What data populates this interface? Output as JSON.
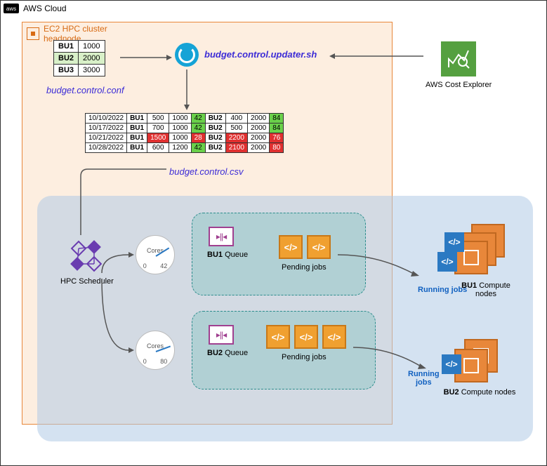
{
  "header": {
    "aws_label": "aws",
    "title": "AWS Cloud"
  },
  "ec2": {
    "title_line1": "EC2 HPC cluster",
    "title_line2": "headnode"
  },
  "conf": {
    "rows": [
      {
        "bu": "BU1",
        "val": "1000",
        "hl": false
      },
      {
        "bu": "BU2",
        "val": "2000",
        "hl": true
      },
      {
        "bu": "BU3",
        "val": "3000",
        "hl": false
      }
    ],
    "label": "budget.control.conf"
  },
  "updater": {
    "label": "budget.control.updater.sh",
    "color": "#15a3d6"
  },
  "csv": {
    "label": "budget.control.csv",
    "rows": [
      {
        "date": "10/10/2022",
        "b1": "BU1",
        "v1": "500",
        "v2": "1000",
        "p1": "42",
        "p1c": "g",
        "b2": "BU2",
        "v3": "400",
        "v4": "2000",
        "p2": "84",
        "p2c": "g",
        "v1c": "",
        "v3c": ""
      },
      {
        "date": "10/17/2022",
        "b1": "BU1",
        "v1": "700",
        "v2": "1000",
        "p1": "42",
        "p1c": "g",
        "b2": "BU2",
        "v3": "500",
        "v4": "2000",
        "p2": "84",
        "p2c": "g",
        "v1c": "",
        "v3c": ""
      },
      {
        "date": "10/21/2022",
        "b1": "BU1",
        "v1": "1500",
        "v2": "1000",
        "p1": "28",
        "p1c": "r",
        "b2": "BU2",
        "v3": "2200",
        "v4": "2000",
        "p2": "76",
        "p2c": "r",
        "v1c": "r",
        "v3c": "r"
      },
      {
        "date": "10/28/2022",
        "b1": "BU1",
        "v1": "600",
        "v2": "1200",
        "p1": "42",
        "p1c": "g",
        "b2": "BU2",
        "v3": "2100",
        "v4": "2000",
        "p2": "80",
        "p2c": "r",
        "v1c": "",
        "v3c": "r"
      }
    ]
  },
  "scheduler": {
    "label": "HPC Scheduler",
    "color": "#6a3cb0"
  },
  "cost_explorer": {
    "label": "AWS Cost Explorer",
    "bg": "#55a040"
  },
  "gauges": {
    "top": "Cores",
    "g1": {
      "min": "0",
      "max": "42",
      "angle": -32
    },
    "g2": {
      "min": "0",
      "max": "80",
      "angle": -20
    }
  },
  "queues": {
    "q1": {
      "icon": "|▸||◂|",
      "label_b": "BU1",
      "label_r": " Queue",
      "pending": "Pending jobs",
      "jobs": 2
    },
    "q2": {
      "icon": "|▸||◂|",
      "label_b": "BU2",
      "label_r": " Queue",
      "pending": "Pending jobs",
      "jobs": 3
    }
  },
  "running": {
    "r1": "Running jobs",
    "r2": "Running\njobs"
  },
  "compute": {
    "c1": {
      "label_b": "BU1",
      "label_r": " Compute nodes",
      "nodes": 3,
      "code_tiles": 2
    },
    "c2": {
      "label_b": "BU2",
      "label_r": " Compute nodes",
      "nodes": 2,
      "code_tiles": 1
    }
  },
  "colors": {
    "orange": "#e8873a",
    "orange_fill": "#f8cea5",
    "teal_border": "#2b8c8c",
    "teal_fill": "#b8d8d8",
    "blue_panel": "#b0cae6",
    "green": "#6ad04a",
    "red": "#e03030",
    "link_blue": "#3b2bd6",
    "aws_blue": "#2b79c2",
    "scheduler": "#6a3cb0",
    "cost_bg": "#55a040"
  }
}
